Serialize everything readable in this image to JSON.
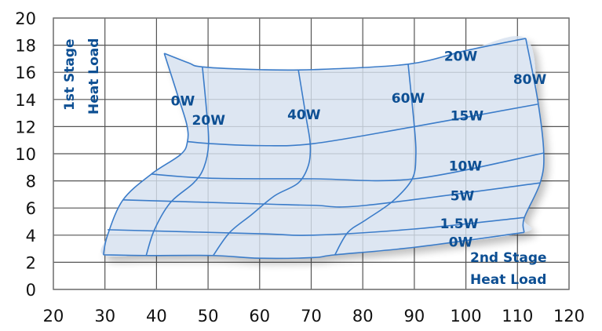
{
  "chart_data": {
    "type": "line",
    "title": "",
    "xlabel": "2nd Stage Heat Load",
    "ylabel": "1st Stage Heat Load",
    "xlabel_lines": [
      "2nd Stage",
      "Heat Load"
    ],
    "ylabel_lines": [
      "1st Stage",
      "Heat Load"
    ],
    "xlim": [
      20,
      120
    ],
    "ylim": [
      0,
      20
    ],
    "xticks": [
      20,
      30,
      40,
      50,
      60,
      70,
      80,
      90,
      100,
      110,
      120
    ],
    "yticks": [
      0,
      2,
      4,
      6,
      8,
      10,
      12,
      14,
      16,
      18,
      20
    ],
    "grid": true,
    "colors": {
      "line": "#3b7cc9",
      "fill": "#dde6f2",
      "label": "#0d4f93",
      "grid": "#555555"
    },
    "outline": [
      [
        41.5,
        17.4
      ],
      [
        46.2,
        16.7
      ],
      [
        48.9,
        16.4
      ],
      [
        59.9,
        16.2
      ],
      [
        67.5,
        16.2
      ],
      [
        70.5,
        16.2
      ],
      [
        80,
        16.3
      ],
      [
        88.8,
        16.6
      ],
      [
        100,
        17.6
      ],
      [
        111.6,
        18.5
      ],
      [
        113.9,
        14.0
      ],
      [
        115.1,
        10.05
      ],
      [
        114.4,
        7.85
      ],
      [
        111.3,
        5.25
      ],
      [
        111.3,
        4.2
      ],
      [
        89.9,
        3.1
      ],
      [
        74.6,
        2.55
      ],
      [
        70.5,
        2.35
      ],
      [
        59.9,
        2.3
      ],
      [
        51.0,
        2.5
      ],
      [
        38.0,
        2.5
      ],
      [
        29.7,
        2.55
      ],
      [
        30.5,
        4.0
      ],
      [
        33.5,
        6.6
      ],
      [
        39.0,
        8.5
      ],
      [
        44.7,
        9.95
      ],
      [
        46.0,
        10.9
      ],
      [
        45.9,
        12.1
      ],
      [
        44.2,
        14.2
      ],
      [
        41.5,
        17.4
      ]
    ],
    "series": [
      {
        "name": "0W (1st stage)",
        "family": "first-stage",
        "points": [
          [
            29.7,
            2.55
          ],
          [
            30.5,
            4.0
          ],
          [
            33.5,
            6.6
          ],
          [
            39.0,
            8.5
          ],
          [
            44.7,
            9.95
          ],
          [
            46.0,
            10.9
          ],
          [
            45.9,
            12.1
          ],
          [
            44.2,
            14.2
          ],
          [
            41.5,
            17.4
          ]
        ]
      },
      {
        "name": "20W (1st stage)",
        "family": "first-stage",
        "points": [
          [
            38.0,
            2.5
          ],
          [
            39.6,
            4.4
          ],
          [
            42.7,
            6.4
          ],
          [
            47.2,
            7.85
          ],
          [
            49.2,
            9.0
          ],
          [
            50.1,
            10.75
          ],
          [
            49.7,
            13.2
          ],
          [
            48.9,
            16.4
          ]
        ]
      },
      {
        "name": "40W",
        "family": "first-stage",
        "points": [
          [
            51.0,
            2.5
          ],
          [
            54.2,
            4.2
          ],
          [
            58.4,
            5.5
          ],
          [
            62.9,
            6.9
          ],
          [
            67.5,
            7.85
          ],
          [
            69.5,
            9.2
          ],
          [
            69.8,
            10.75
          ],
          [
            69.0,
            12.7
          ],
          [
            67.5,
            16.2
          ]
        ]
      },
      {
        "name": "60W",
        "family": "first-stage",
        "points": [
          [
            74.6,
            2.55
          ],
          [
            77.1,
            4.2
          ],
          [
            80.7,
            5.15
          ],
          [
            85.8,
            6.5
          ],
          [
            89.6,
            8.15
          ],
          [
            90.3,
            9.95
          ],
          [
            90.0,
            12.0
          ],
          [
            88.8,
            16.6
          ]
        ]
      },
      {
        "name": "80W",
        "family": "first-stage",
        "points": [
          [
            111.3,
            4.2
          ],
          [
            111.3,
            5.25
          ],
          [
            114.4,
            7.85
          ],
          [
            115.1,
            10.05
          ],
          [
            113.9,
            14.0
          ],
          [
            111.6,
            18.5
          ]
        ]
      },
      {
        "name": "0W (2nd stage)",
        "family": "second-stage",
        "points": [
          [
            29.7,
            2.55
          ],
          [
            38.0,
            2.5
          ],
          [
            51.0,
            2.5
          ],
          [
            59.9,
            2.3
          ],
          [
            70.5,
            2.35
          ],
          [
            74.6,
            2.55
          ],
          [
            89.9,
            3.1
          ],
          [
            111.3,
            4.2
          ]
        ]
      },
      {
        "name": "1.5W",
        "family": "second-stage",
        "points": [
          [
            30.5,
            4.4
          ],
          [
            60.3,
            4.1
          ],
          [
            70.5,
            4.0
          ],
          [
            89.9,
            4.45
          ],
          [
            111.3,
            5.3
          ]
        ]
      },
      {
        "name": "5W",
        "family": "second-stage",
        "points": [
          [
            33.5,
            6.6
          ],
          [
            60.3,
            6.3
          ],
          [
            70.5,
            6.2
          ],
          [
            80.7,
            6.2
          ],
          [
            114.4,
            7.85
          ]
        ]
      },
      {
        "name": "10W",
        "family": "second-stage",
        "points": [
          [
            39.0,
            8.5
          ],
          [
            50.3,
            8.2
          ],
          [
            70.5,
            8.15
          ],
          [
            89.9,
            8.15
          ],
          [
            115.1,
            10.05
          ]
        ]
      },
      {
        "name": "15W",
        "family": "second-stage",
        "points": [
          [
            46.0,
            10.9
          ],
          [
            50.3,
            10.75
          ],
          [
            59.9,
            10.6
          ],
          [
            70.5,
            10.75
          ],
          [
            90.0,
            12.0
          ],
          [
            113.9,
            13.65
          ]
        ]
      },
      {
        "name": "20W (2nd stage)",
        "family": "second-stage",
        "points": [
          [
            41.5,
            17.4
          ],
          [
            46.2,
            16.7
          ],
          [
            48.9,
            16.4
          ],
          [
            59.9,
            16.2
          ],
          [
            70.5,
            16.2
          ],
          [
            88.8,
            16.6
          ],
          [
            100,
            17.6
          ],
          [
            111.6,
            18.5
          ]
        ]
      }
    ],
    "annotations": [
      {
        "text": "0W",
        "x": 45.1,
        "y": 13.9
      },
      {
        "text": "20W",
        "x": 50.1,
        "y": 12.5
      },
      {
        "text": "40W",
        "x": 68.6,
        "y": 12.9
      },
      {
        "text": "60W",
        "x": 88.8,
        "y": 14.1
      },
      {
        "text": "20W",
        "x": 99.0,
        "y": 17.2
      },
      {
        "text": "80W",
        "x": 112.4,
        "y": 15.5
      },
      {
        "text": "15W",
        "x": 100.2,
        "y": 12.8
      },
      {
        "text": "10W",
        "x": 99.9,
        "y": 9.1
      },
      {
        "text": "5W",
        "x": 99.3,
        "y": 6.9
      },
      {
        "text": "1.5W",
        "x": 98.7,
        "y": 4.85
      },
      {
        "text": "0W",
        "x": 99.0,
        "y": 3.5
      }
    ]
  }
}
